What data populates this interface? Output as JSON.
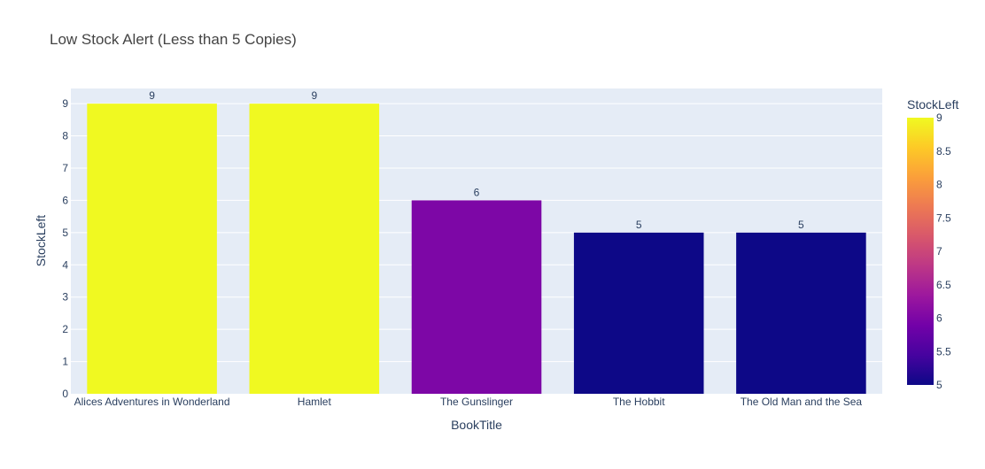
{
  "chart_data": {
    "type": "bar",
    "title": "Low Stock Alert (Less than 5 Copies)",
    "xlabel": "BookTitle",
    "ylabel": "StockLeft",
    "categories": [
      "Alices Adventures in Wonderland",
      "Hamlet",
      "The Gunslinger",
      "The Hobbit",
      "The Old Man and the Sea"
    ],
    "values": [
      9,
      9,
      6,
      5,
      5
    ],
    "data_labels": [
      "9",
      "9",
      "6",
      "5",
      "5"
    ],
    "ylim": [
      0,
      9.47
    ],
    "yticks": [
      0,
      1,
      2,
      3,
      4,
      5,
      6,
      7,
      8,
      9
    ],
    "grid": true,
    "colorbar": {
      "title": "StockLeft",
      "range": [
        5,
        9
      ],
      "ticks": [
        "5",
        "5.5",
        "6",
        "6.5",
        "7",
        "7.5",
        "8",
        "8.5",
        "9"
      ],
      "colorscale": [
        "#0d0887",
        "#46039f",
        "#7201a8",
        "#9c179e",
        "#bd3786",
        "#d8576b",
        "#ed7953",
        "#fb9f3a",
        "#fdca26",
        "#f0f921"
      ]
    },
    "colors": {
      "plot_bg": "#e5ecf6",
      "grid": "#ffffff",
      "text": "#2a3f5f",
      "title": "#444444"
    }
  }
}
